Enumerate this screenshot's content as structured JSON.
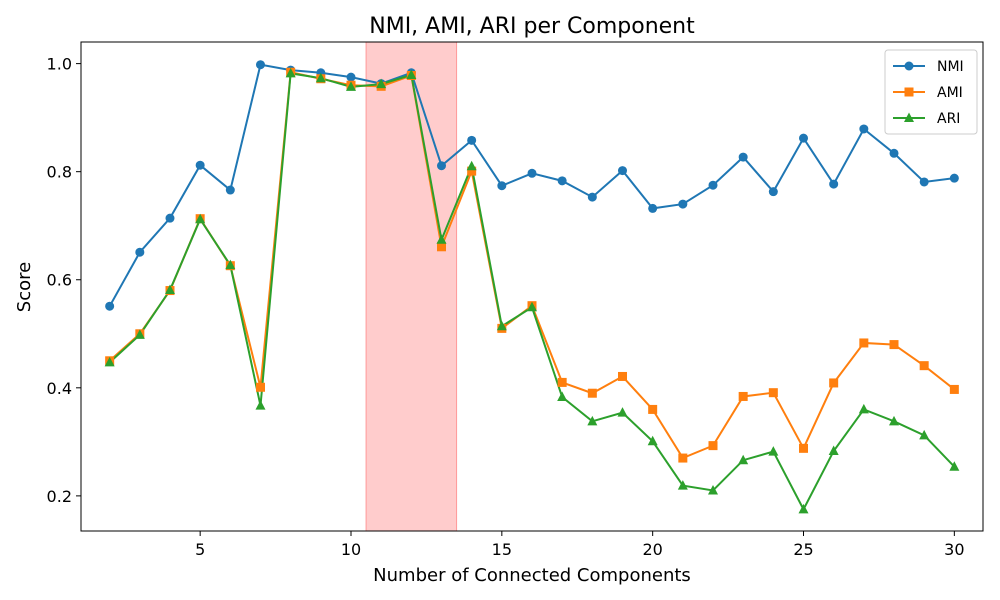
{
  "chart_data": {
    "type": "line",
    "title": "NMI, AMI, ARI per Component",
    "xlabel": "Number of Connected Components",
    "ylabel": "Score",
    "xlim": [
      1.05,
      30.95
    ],
    "ylim": [
      0.135,
      1.04
    ],
    "xticks": [
      5,
      10,
      15,
      20,
      25,
      30
    ],
    "yticks": [
      0.2,
      0.4,
      0.6,
      0.8,
      1.0
    ],
    "ytick_labels": [
      "0.2",
      "0.4",
      "0.6",
      "0.8",
      "1.0"
    ],
    "grid": false,
    "legend_position": "top-right",
    "highlight_span": {
      "x_start": 10.5,
      "x_end": 13.5,
      "color": "#ffcccc"
    },
    "x": [
      2,
      3,
      4,
      5,
      6,
      7,
      8,
      9,
      10,
      11,
      12,
      13,
      14,
      15,
      16,
      17,
      18,
      19,
      20,
      21,
      22,
      23,
      24,
      25,
      26,
      27,
      28,
      29,
      30
    ],
    "series": [
      {
        "name": "NMI",
        "color": "#1f77b4",
        "marker": "circle",
        "values": [
          0.551,
          0.651,
          0.714,
          0.812,
          0.766,
          0.998,
          0.988,
          0.983,
          0.975,
          0.963,
          0.983,
          0.811,
          0.858,
          0.774,
          0.797,
          0.783,
          0.753,
          0.802,
          0.732,
          0.74,
          0.775,
          0.827,
          0.763,
          0.862,
          0.777,
          0.879,
          0.834,
          0.781,
          0.788
        ]
      },
      {
        "name": "AMI",
        "color": "#ff7f0e",
        "marker": "square",
        "values": [
          0.45,
          0.5,
          0.58,
          0.713,
          0.626,
          0.401,
          0.984,
          0.972,
          0.96,
          0.958,
          0.978,
          0.661,
          0.801,
          0.51,
          0.552,
          0.41,
          0.39,
          0.421,
          0.36,
          0.27,
          0.293,
          0.384,
          0.391,
          0.288,
          0.409,
          0.483,
          0.48,
          0.441,
          0.397
        ]
      },
      {
        "name": "ARI",
        "color": "#2ca02c",
        "marker": "triangle",
        "values": [
          0.447,
          0.498,
          0.581,
          0.712,
          0.627,
          0.367,
          0.982,
          0.973,
          0.957,
          0.962,
          0.979,
          0.674,
          0.81,
          0.514,
          0.549,
          0.383,
          0.338,
          0.354,
          0.301,
          0.219,
          0.21,
          0.266,
          0.282,
          0.175,
          0.283,
          0.36,
          0.338,
          0.312,
          0.254
        ]
      }
    ]
  }
}
